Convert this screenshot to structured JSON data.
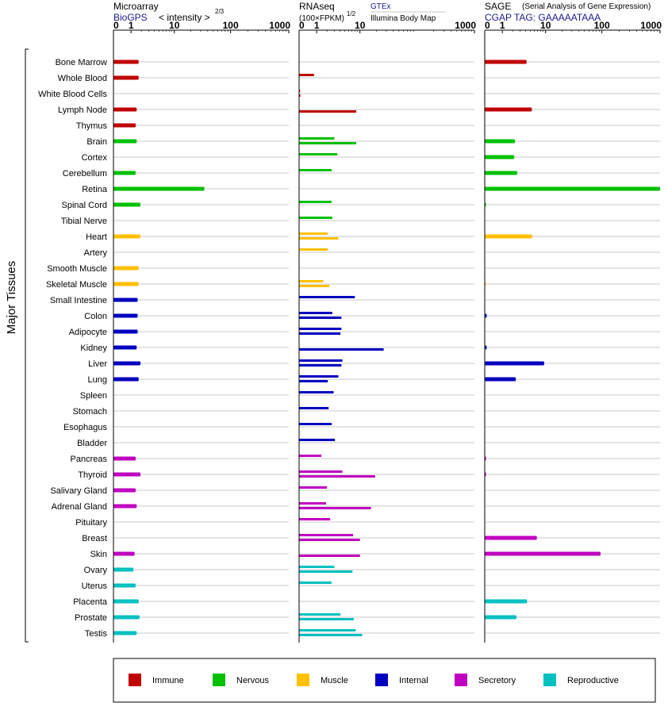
{
  "chart_data": {
    "type": "bar",
    "ylabel": "Major Tissues",
    "categories": [
      "Bone Marrow",
      "Whole Blood",
      "White Blood Cells",
      "Lymph Node",
      "Thymus",
      "Brain",
      "Cortex",
      "Cerebellum",
      "Retina",
      "Spinal Cord",
      "Tibial Nerve",
      "Heart",
      "Artery",
      "Smooth Muscle",
      "Skeletal Muscle",
      "Small Intestine",
      "Colon",
      "Adipocyte",
      "Kidney",
      "Liver",
      "Lung",
      "Spleen",
      "Stomach",
      "Esophagus",
      "Bladder",
      "Pancreas",
      "Thyroid",
      "Salivary Gland",
      "Adrenal Gland",
      "Pituitary",
      "Breast",
      "Skin",
      "Ovary",
      "Uterus",
      "Placenta",
      "Prostate",
      "Testis"
    ],
    "groups": [
      "Immune",
      "Immune",
      "Immune",
      "Immune",
      "Immune",
      "Nervous",
      "Nervous",
      "Nervous",
      "Nervous",
      "Nervous",
      "Nervous",
      "Muscle",
      "Muscle",
      "Muscle",
      "Muscle",
      "Internal",
      "Internal",
      "Internal",
      "Internal",
      "Internal",
      "Internal",
      "Internal",
      "Internal",
      "Internal",
      "Internal",
      "Secretory",
      "Secretory",
      "Secretory",
      "Secretory",
      "Secretory",
      "Secretory",
      "Secretory",
      "Reproductive",
      "Reproductive",
      "Reproductive",
      "Reproductive",
      "Reproductive"
    ],
    "legend": [
      {
        "name": "Immune",
        "color": "#c00000"
      },
      {
        "name": "Nervous",
        "color": "#00c000"
      },
      {
        "name": "Muscle",
        "color": "#ffc000"
      },
      {
        "name": "Internal",
        "color": "#0000c0"
      },
      {
        "name": "Secretory",
        "color": "#c000c0"
      },
      {
        "name": "Reproductive",
        "color": "#00c0c0"
      }
    ],
    "panels": [
      {
        "name": "Microarray",
        "subtitle": "BioGPS",
        "scale_label": "< intensity >",
        "scale_exp": "2/3",
        "ticks": [
          "0",
          "1",
          "10",
          "100",
          "1000"
        ],
        "xlim": [
          0,
          1000
        ],
        "series": [
          {
            "name": "BioGPS",
            "values": [
              1.7,
              1.7,
              null,
              1.5,
              1.4,
              1.5,
              null,
              1.4,
              35,
              1.9,
              null,
              1.9,
              null,
              1.7,
              1.7,
              1.6,
              1.6,
              1.6,
              1.5,
              1.9,
              1.7,
              null,
              null,
              null,
              null,
              1.4,
              1.9,
              1.4,
              1.5,
              null,
              null,
              1.3,
              1.2,
              1.4,
              1.7,
              1.8,
              1.5
            ]
          }
        ]
      },
      {
        "name": "RNAseq",
        "subtitle": "(100×FPKM)",
        "scale_exp": "1/2",
        "ticks": [
          "0",
          "1",
          "10",
          "1000"
        ],
        "xlim": [
          0,
          1000
        ],
        "series": [
          {
            "name": "GTEx",
            "values": [
              null,
              0.8,
              0.01,
              null,
              null,
              3.0,
              3.5,
              2.6,
              null,
              2.6,
              2.7,
              2.1,
              2.1,
              null,
              1.6,
              8,
              2.7,
              4.3,
              null,
              4.5,
              3.7,
              2.9,
              2.2,
              2.6,
              3.1,
              1.4,
              4.5,
              2.0,
              1.9,
              2.4,
              7.4,
              null,
              3.0,
              2.6,
              null,
              4.1,
              8.3
            ]
          },
          {
            "name": "Illumina Body Map",
            "values": [
              null,
              null,
              0.05,
              8.5,
              null,
              8.5,
              null,
              null,
              null,
              null,
              null,
              3.7,
              null,
              null,
              2.3,
              null,
              4.3,
              4.1,
              27,
              4.3,
              2.1,
              null,
              null,
              null,
              null,
              null,
              19,
              null,
              16,
              null,
              10,
              10,
              7.2,
              null,
              null,
              7.6,
              11
            ]
          }
        ]
      },
      {
        "name": "SAGE",
        "subtitle": "CGAP TAG: GAAAAATAAA",
        "description": "(Serial Analysis of Gene Expression)",
        "ticks": [
          "0",
          "1",
          "10",
          "100",
          "1000"
        ],
        "xlim": [
          0,
          1000
        ],
        "series": [
          {
            "name": "SAGE",
            "values": [
              4.2,
              null,
              null,
              5.4,
              null,
              2.3,
              2.2,
              2.6,
              1000,
              0.05,
              null,
              5.5,
              null,
              null,
              0.04,
              null,
              0.08,
              null,
              0.08,
              9.4,
              2.4,
              null,
              null,
              null,
              null,
              0.05,
              0.05,
              null,
              null,
              null,
              6.8,
              95,
              null,
              null,
              4.3,
              2.5,
              null
            ]
          }
        ]
      }
    ],
    "source_labels": {
      "gtex": "GTEx",
      "ibm": "Illumina Body Map"
    }
  }
}
